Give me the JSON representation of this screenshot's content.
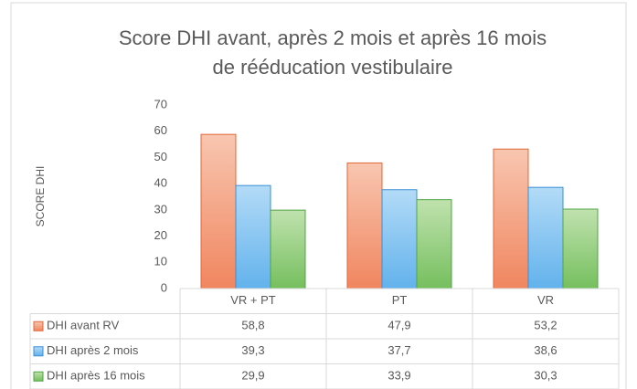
{
  "chart_data": {
    "type": "bar",
    "title": [
      "Score DHI avant, après 2 mois et après 16 mois",
      "de rééducation vestibulaire"
    ],
    "y_label": "SCORE DHI",
    "categories": [
      "VR + PT",
      "PT",
      "VR"
    ],
    "series": [
      {
        "name": "DHI avant RV",
        "color": "#f4a07f",
        "values": [
          58.8,
          47.9,
          53.2
        ],
        "value_labels": [
          "58,8",
          "47,9",
          "53,2"
        ]
      },
      {
        "name": "DHI après 2 mois",
        "color": "#84c4f0",
        "values": [
          39.3,
          37.7,
          38.6
        ],
        "value_labels": [
          "39,3",
          "37,7",
          "38,6"
        ]
      },
      {
        "name": "DHI après 16 mois",
        "color": "#95cf7f",
        "values": [
          29.9,
          33.9,
          30.3
        ],
        "value_labels": [
          "29,9",
          "33,9",
          "30,3"
        ]
      }
    ],
    "ylim": [
      0,
      70
    ],
    "yticks": [
      0,
      10,
      20,
      30,
      40,
      50,
      60,
      70
    ],
    "grid": false
  }
}
